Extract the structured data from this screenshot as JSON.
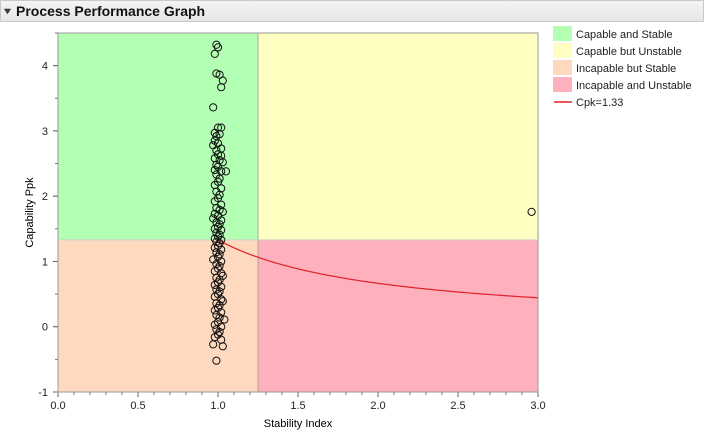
{
  "header": {
    "title": "Process Performance Graph"
  },
  "chart_data": {
    "type": "scatter",
    "title": "Process Performance Graph",
    "xlabel": "Stability Index",
    "ylabel": "Capability Ppk",
    "xlim": [
      0.0,
      3.0
    ],
    "ylim": [
      -1,
      4.5
    ],
    "x_ticks": [
      "0.0",
      "0.5",
      "1.0",
      "1.5",
      "2.0",
      "2.5",
      "3.0"
    ],
    "x_tick_values": [
      0.0,
      0.5,
      1.0,
      1.5,
      2.0,
      2.5,
      3.0
    ],
    "y_ticks": [
      "-1",
      "0",
      "1",
      "2",
      "3",
      "4"
    ],
    "y_tick_values": [
      -1,
      0,
      1,
      2,
      3,
      4
    ],
    "thresholds": {
      "stability": 1.25,
      "capability": 1.33
    },
    "regions": [
      {
        "label": "Capable and Stable",
        "color": "#b3ffb3"
      },
      {
        "label": "Capable but Unstable",
        "color": "#ffffc2"
      },
      {
        "label": "Incapable but Stable",
        "color": "#ffd9bf"
      },
      {
        "label": "Incapable and Unstable",
        "color": "#ffb0bd"
      }
    ],
    "curve": {
      "label": "Cpk=1.33",
      "color": "#e0202a"
    },
    "legend_position": "right",
    "points": [
      [
        0.99,
        4.32
      ],
      [
        1.0,
        4.28
      ],
      [
        0.98,
        4.18
      ],
      [
        0.99,
        3.88
      ],
      [
        1.01,
        3.86
      ],
      [
        1.03,
        3.77
      ],
      [
        1.02,
        3.67
      ],
      [
        0.97,
        3.36
      ],
      [
        1.0,
        3.05
      ],
      [
        1.02,
        3.05
      ],
      [
        0.98,
        2.97
      ],
      [
        1.01,
        2.95
      ],
      [
        0.99,
        2.92
      ],
      [
        0.98,
        2.85
      ],
      [
        1.0,
        2.81
      ],
      [
        0.97,
        2.78
      ],
      [
        1.02,
        2.73
      ],
      [
        0.99,
        2.7
      ],
      [
        1.0,
        2.64
      ],
      [
        1.02,
        2.62
      ],
      [
        0.98,
        2.58
      ],
      [
        1.01,
        2.55
      ],
      [
        1.03,
        2.52
      ],
      [
        0.99,
        2.48
      ],
      [
        1.0,
        2.45
      ],
      [
        0.98,
        2.4
      ],
      [
        1.02,
        2.38
      ],
      [
        1.05,
        2.38
      ],
      [
        0.99,
        2.33
      ],
      [
        1.01,
        2.27
      ],
      [
        1.0,
        2.22
      ],
      [
        0.98,
        2.17
      ],
      [
        1.02,
        2.12
      ],
      [
        0.99,
        2.07
      ],
      [
        1.01,
        2.02
      ],
      [
        1.0,
        1.97
      ],
      [
        0.98,
        1.92
      ],
      [
        1.02,
        1.87
      ],
      [
        0.99,
        1.82
      ],
      [
        1.01,
        1.79
      ],
      [
        1.03,
        1.76
      ],
      [
        0.98,
        1.73
      ],
      [
        1.0,
        1.7
      ],
      [
        0.97,
        1.66
      ],
      [
        1.02,
        1.63
      ],
      [
        0.99,
        1.6
      ],
      [
        1.01,
        1.57
      ],
      [
        1.0,
        1.53
      ],
      [
        0.98,
        1.5
      ],
      [
        1.02,
        1.48
      ],
      [
        0.99,
        1.44
      ],
      [
        1.01,
        1.41
      ],
      [
        1.0,
        1.38
      ],
      [
        0.98,
        1.35
      ],
      [
        1.02,
        1.33
      ],
      [
        2.96,
        1.76
      ],
      [
        0.99,
        1.3
      ],
      [
        1.01,
        1.28
      ],
      [
        1.0,
        1.24
      ],
      [
        0.98,
        1.21
      ],
      [
        1.02,
        1.18
      ],
      [
        0.99,
        1.14
      ],
      [
        1.01,
        1.11
      ],
      [
        1.0,
        1.07
      ],
      [
        0.97,
        1.03
      ],
      [
        1.02,
        1.0
      ],
      [
        0.99,
        0.96
      ],
      [
        1.01,
        0.93
      ],
      [
        1.0,
        0.89
      ],
      [
        0.98,
        0.85
      ],
      [
        1.02,
        0.82
      ],
      [
        1.03,
        0.78
      ],
      [
        0.99,
        0.75
      ],
      [
        1.01,
        0.72
      ],
      [
        1.0,
        0.68
      ],
      [
        0.98,
        0.64
      ],
      [
        1.02,
        0.61
      ],
      [
        0.99,
        0.57
      ],
      [
        1.01,
        0.54
      ],
      [
        1.0,
        0.5
      ],
      [
        0.98,
        0.46
      ],
      [
        1.02,
        0.42
      ],
      [
        1.03,
        0.39
      ],
      [
        0.99,
        0.36
      ],
      [
        1.01,
        0.33
      ],
      [
        1.0,
        0.29
      ],
      [
        0.98,
        0.25
      ],
      [
        1.02,
        0.22
      ],
      [
        0.99,
        0.18
      ],
      [
        1.01,
        0.14
      ],
      [
        1.04,
        0.11
      ],
      [
        1.0,
        0.07
      ],
      [
        0.98,
        0.03
      ],
      [
        1.02,
        0.0
      ],
      [
        0.99,
        -0.04
      ],
      [
        1.01,
        -0.08
      ],
      [
        1.0,
        -0.12
      ],
      [
        0.98,
        -0.16
      ],
      [
        1.02,
        -0.2
      ],
      [
        0.97,
        -0.27
      ],
      [
        1.03,
        -0.3
      ],
      [
        0.99,
        -0.52
      ]
    ]
  }
}
